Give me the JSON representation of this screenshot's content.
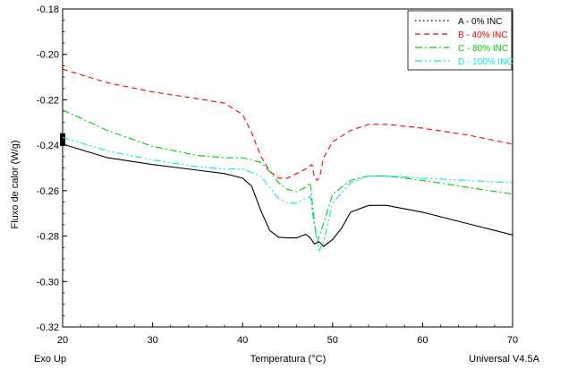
{
  "chart_data": {
    "type": "line",
    "title": "",
    "xlabel": "Temperatura (°C)",
    "ylabel": "Fluxo de calor (W/g)",
    "xlim": [
      20,
      70
    ],
    "ylim": [
      -0.32,
      -0.18
    ],
    "x_ticks": [
      "20",
      "30",
      "40",
      "50",
      "60",
      "70"
    ],
    "y_ticks": [
      "-0.18",
      "-0.20",
      "-0.22",
      "-0.24",
      "-0.26",
      "-0.28",
      "-0.30",
      "-0.32"
    ],
    "grid": false,
    "legend_position": "top-right",
    "corner_left_label": "Exo Up",
    "corner_right_label": "Universal V4.5A",
    "series": [
      {
        "name": "A - 0% INC",
        "color": "#000000",
        "dash": "solid",
        "x": [
          20,
          25,
          30,
          35,
          38,
          40,
          41,
          42,
          43,
          44,
          45,
          46,
          47,
          47.5,
          48,
          48.5,
          49,
          50,
          51,
          52,
          54,
          56,
          60,
          65,
          70
        ],
        "y": [
          -0.2395,
          -0.2455,
          -0.2485,
          -0.251,
          -0.2525,
          -0.2545,
          -0.258,
          -0.2685,
          -0.2775,
          -0.2805,
          -0.2808,
          -0.2808,
          -0.2792,
          -0.2808,
          -0.2835,
          -0.2825,
          -0.2845,
          -0.2815,
          -0.2765,
          -0.2695,
          -0.2665,
          -0.2665,
          -0.2695,
          -0.2745,
          -0.2795
        ]
      },
      {
        "name": "B - 40% INC",
        "color": "#ff0000",
        "dash": "dashed",
        "x": [
          20,
          25,
          30,
          35,
          38,
          40,
          41,
          42,
          43,
          44,
          45,
          46,
          47,
          47.7,
          48,
          48.3,
          48.6,
          49,
          50,
          52,
          54,
          56,
          60,
          65,
          70
        ],
        "y": [
          -0.2065,
          -0.2125,
          -0.2165,
          -0.2195,
          -0.2215,
          -0.2265,
          -0.2345,
          -0.2445,
          -0.2515,
          -0.2545,
          -0.2545,
          -0.2525,
          -0.2505,
          -0.2485,
          -0.2545,
          -0.2555,
          -0.2535,
          -0.2455,
          -0.2385,
          -0.2335,
          -0.2308,
          -0.2308,
          -0.2325,
          -0.2355,
          -0.2395
        ]
      },
      {
        "name": "C - 80% INC",
        "color": "#00cc00",
        "dash": "dashdot",
        "x": [
          20,
          25,
          30,
          35,
          38,
          40,
          42,
          43,
          44,
          45,
          46,
          47,
          47.5,
          48,
          48.3,
          49,
          50,
          52,
          54,
          56,
          60,
          65,
          70
        ],
        "y": [
          -0.2245,
          -0.2335,
          -0.2405,
          -0.2445,
          -0.2455,
          -0.2455,
          -0.2475,
          -0.2515,
          -0.2565,
          -0.2595,
          -0.2605,
          -0.2585,
          -0.2565,
          -0.2745,
          -0.2825,
          -0.2745,
          -0.2615,
          -0.2555,
          -0.2535,
          -0.2535,
          -0.2555,
          -0.2585,
          -0.2615
        ]
      },
      {
        "name": "D - 100% INC",
        "color": "#00e5ee",
        "dash": "dashdotdot",
        "x": [
          20,
          25,
          30,
          35,
          38,
          40,
          42,
          43,
          44,
          45,
          46,
          47,
          47.5,
          48,
          48.5,
          49,
          50,
          52,
          54,
          56,
          60,
          65,
          70
        ],
        "y": [
          -0.2365,
          -0.2425,
          -0.2465,
          -0.2495,
          -0.2505,
          -0.2505,
          -0.2535,
          -0.2585,
          -0.2635,
          -0.2655,
          -0.2655,
          -0.2635,
          -0.2625,
          -0.2765,
          -0.2865,
          -0.2825,
          -0.2655,
          -0.2565,
          -0.2535,
          -0.2535,
          -0.2545,
          -0.2555,
          -0.2565
        ]
      }
    ]
  }
}
